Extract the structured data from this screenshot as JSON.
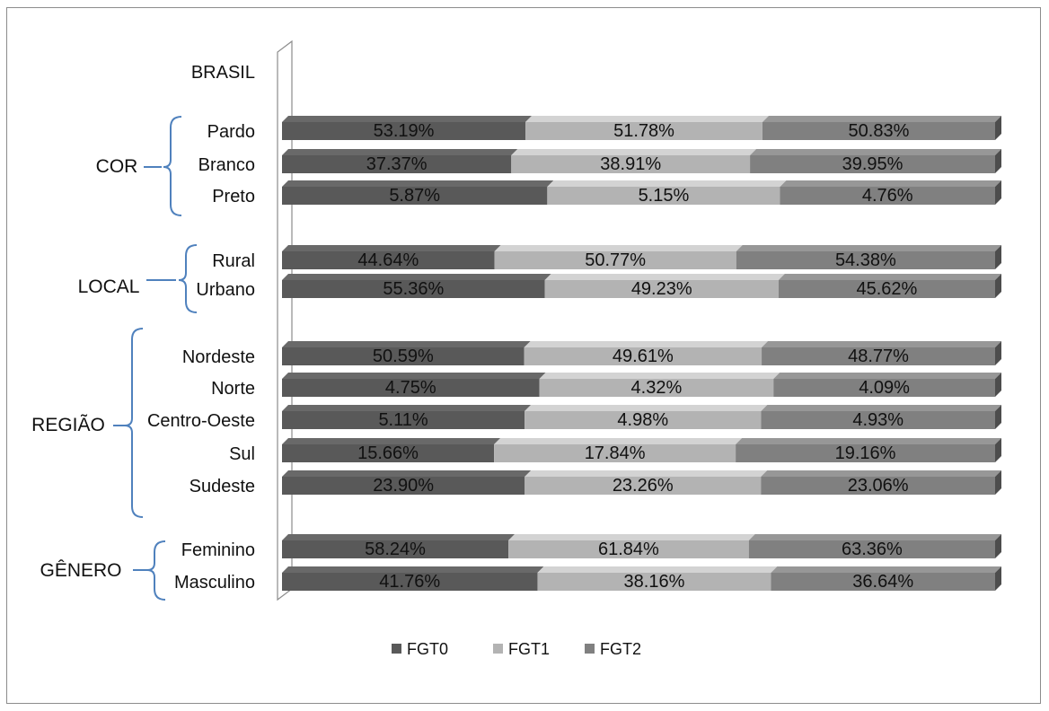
{
  "chart_data": {
    "type": "bar",
    "stacked": "100%",
    "orientation": "horizontal",
    "categories": [
      "BRASIL",
      "Pardo",
      "Branco",
      "Preto",
      "Rural",
      "Urbano",
      "Nordeste",
      "Norte",
      "Centro-Oeste",
      "Sul",
      "Sudeste",
      "Feminino",
      "Masculino"
    ],
    "groups": [
      {
        "name": "COR",
        "categories": [
          "Pardo",
          "Branco",
          "Preto"
        ]
      },
      {
        "name": "LOCAL",
        "categories": [
          "Rural",
          "Urbano"
        ]
      },
      {
        "name": "REGIÃO",
        "categories": [
          "Nordeste",
          "Norte",
          "Centro-Oeste",
          "Sul",
          "Sudeste"
        ]
      },
      {
        "name": "GÊNERO",
        "categories": [
          "Feminino",
          "Masculino"
        ]
      }
    ],
    "series": [
      {
        "name": "FGT0",
        "color": "#595959",
        "values": [
          null,
          53.19,
          37.37,
          5.87,
          44.64,
          55.36,
          50.59,
          4.75,
          5.11,
          15.66,
          23.9,
          58.24,
          41.76
        ],
        "labels": [
          "",
          "53.19%",
          "37.37%",
          "5.87%",
          "44.64%",
          "55.36%",
          "50.59%",
          "4.75%",
          "5.11%",
          "15.66%",
          "23.90%",
          "58.24%",
          "41.76%"
        ]
      },
      {
        "name": "FGT1",
        "color": "#b3b3b3",
        "values": [
          null,
          51.78,
          38.91,
          5.15,
          50.77,
          49.23,
          49.61,
          4.32,
          4.98,
          17.84,
          23.26,
          61.84,
          38.16
        ],
        "labels": [
          "",
          "51.78%",
          "38.91%",
          "5.15%",
          "50.77%",
          "49.23%",
          "49.61%",
          "4.32%",
          "4.98%",
          "17.84%",
          "23.26%",
          "61.84%",
          "38.16%"
        ]
      },
      {
        "name": "FGT2",
        "color": "#808080",
        "values": [
          null,
          50.83,
          39.95,
          4.76,
          54.38,
          45.62,
          48.77,
          4.09,
          4.93,
          19.16,
          23.06,
          63.36,
          36.64
        ],
        "labels": [
          "",
          "50.83%",
          "39.95%",
          "4.76%",
          "54.38%",
          "45.62%",
          "48.77%",
          "4.09%",
          "4.93%",
          "19.16%",
          "23.06%",
          "63.36%",
          "36.64%"
        ]
      }
    ],
    "legend": {
      "position": "bottom",
      "entries": [
        "FGT0",
        "FGT1",
        "FGT2"
      ]
    },
    "grid": false,
    "three_d": true
  }
}
